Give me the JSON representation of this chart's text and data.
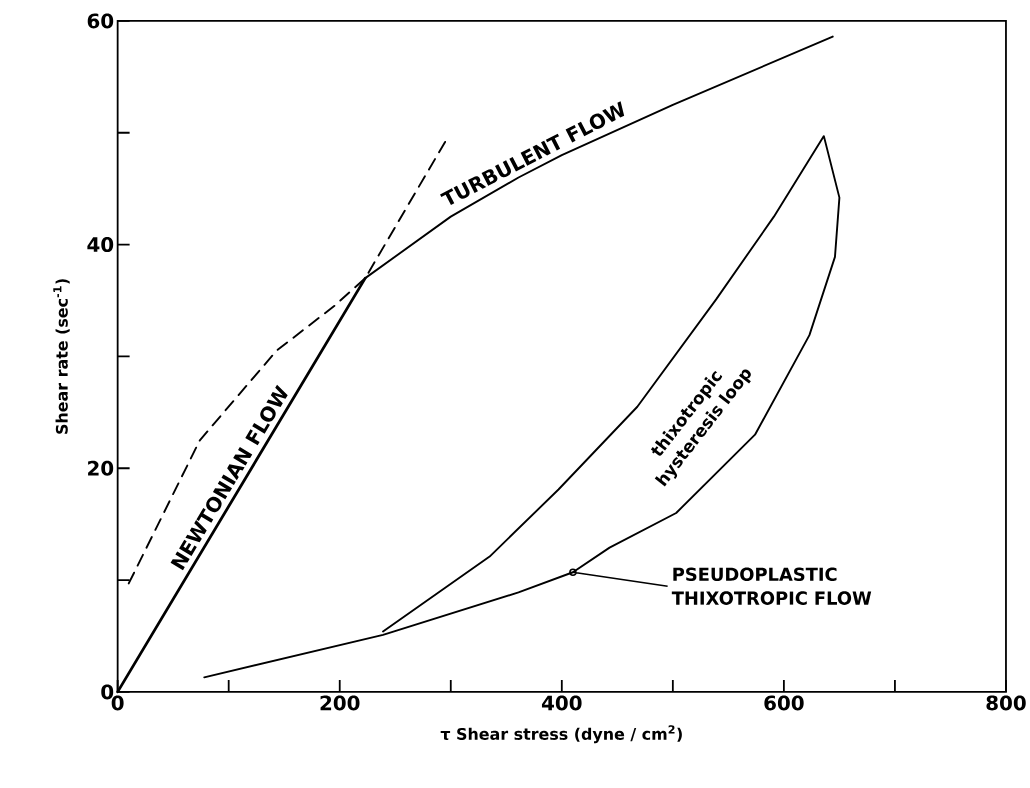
{
  "chart_data": {
    "type": "line",
    "xlabel": "τ   Shear stress (dyne / cm$^{2}$)",
    "ylabel": "Shear rate (sec$^{-1}$)",
    "xlim": [
      0,
      800
    ],
    "ylim": [
      0,
      60
    ],
    "xticks": [
      0,
      {
        "value": 100,
        "label": null
      },
      200,
      {
        "value": 300,
        "label": null
      },
      400,
      {
        "value": 500,
        "label": null
      },
      600,
      {
        "value": 700,
        "label": null
      },
      800
    ],
    "yticks": [
      0,
      {
        "value": 10,
        "label": null
      },
      20,
      {
        "value": 30,
        "label": null
      },
      40,
      {
        "value": 50,
        "label": null
      },
      60
    ],
    "series": [
      {
        "name": "NEWTONIAN FLOW",
        "color": "#000000",
        "x": [
          0,
          223
        ],
        "values": [
          0,
          37
        ]
      },
      {
        "color": "#000000",
        "line_style": "dashed",
        "x": [
          10,
          74,
          143,
          195,
          223,
          295
        ],
        "values": [
          9.7,
          22.5,
          30.5,
          34.5,
          37,
          49.2
        ]
      },
      {
        "name": "TURBULENT FLOW",
        "color": "#000000",
        "x": [
          223,
          300,
          361,
          400,
          500,
          644
        ],
        "values": [
          37,
          42.5,
          46,
          48,
          52.5,
          58.6
        ]
      },
      {
        "color": "#000000",
        "x": [
          78,
          239,
          361,
          410,
          443,
          503,
          574,
          623,
          646,
          650,
          636,
          591,
          539,
          468,
          397,
          335,
          239
        ],
        "values": [
          1.3,
          5.1,
          8.9,
          10.7,
          12.9,
          16,
          23,
          31.9,
          38.9,
          44.2,
          49.7,
          42.5,
          35.1,
          25.5,
          18.1,
          12.1,
          5.4
        ]
      }
    ],
    "annotations": [
      "thixotropic hysteresis loop",
      {
        "text": "PSEUDOPLASTIC THIXOTROPIC FLOW",
        "x": 410,
        "y": 10.7
      }
    ]
  }
}
